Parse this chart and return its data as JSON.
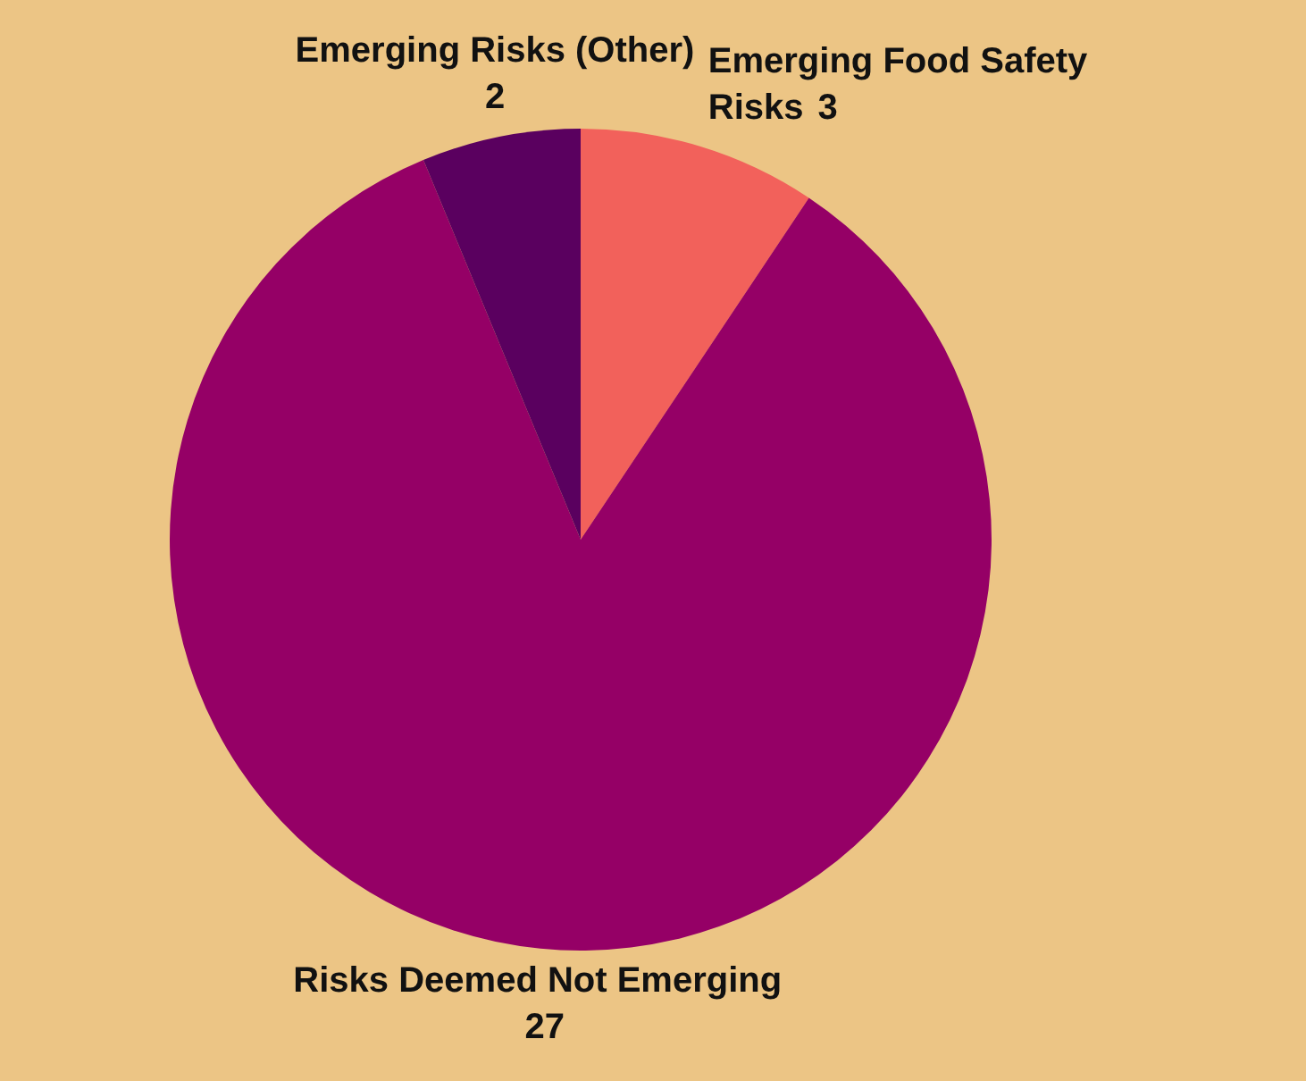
{
  "chart_data": {
    "type": "pie",
    "categories": [
      "Emerging Food Safety Risks",
      "Risks Deemed Not Emerging",
      "Emerging Risks (Other)"
    ],
    "values": [
      3,
      27,
      2
    ],
    "colors": [
      "#f2615b",
      "#950066",
      "#5a005f"
    ],
    "data_labels": true
  }
}
